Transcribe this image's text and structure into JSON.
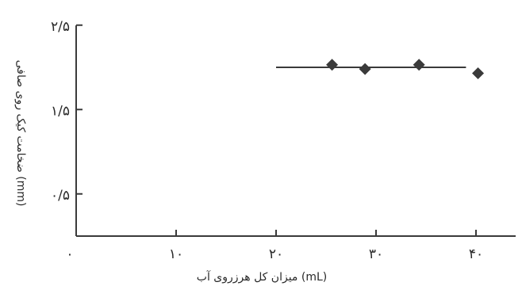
{
  "chart_data": {
    "type": "scatter",
    "xlabel": "میزان کل هرزروی آب (mL)",
    "ylabel": "ضخامت کیک روی صافی (mm)",
    "xlim": [
      0,
      44
    ],
    "ylim": [
      0,
      2.5
    ],
    "x_ticks": [
      0,
      10,
      20,
      30,
      40
    ],
    "x_tick_labels": [
      "۰",
      "۱۰",
      "۲۰",
      "۳۰",
      "۴۰"
    ],
    "y_ticks": [
      0.5,
      1.5,
      2.5
    ],
    "y_tick_labels": [
      "۰/۵",
      "۱/۵",
      "۲/۵"
    ],
    "grid": false,
    "series": [
      {
        "marker": "diamond",
        "color": "#3a3a3a",
        "x": [
          25.6,
          28.9,
          34.3,
          40.2
        ],
        "y": [
          2.03,
          1.98,
          2.03,
          1.93
        ]
      }
    ],
    "reference_line": {
      "x": [
        20,
        39
      ],
      "y": 2.0,
      "color": "#3a3a3a"
    }
  }
}
